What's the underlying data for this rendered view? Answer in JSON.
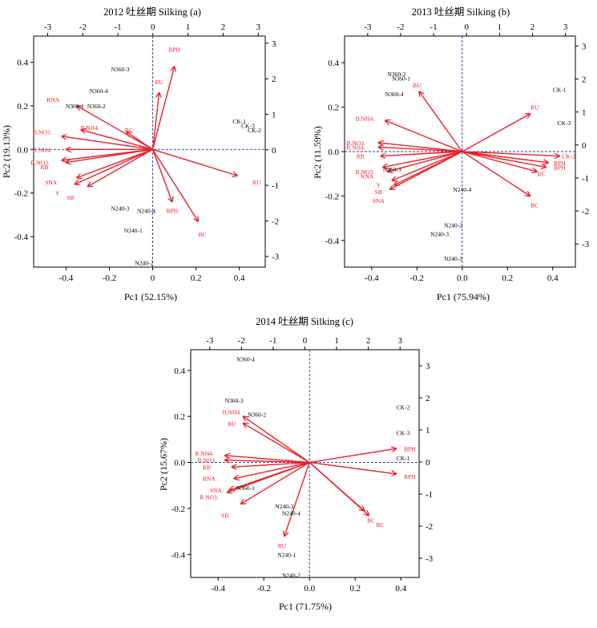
{
  "colors": {
    "vector": "#e8202a",
    "sample": "#000000",
    "axis": "#000000",
    "zero_line": "#1f3a93"
  },
  "chart_data": [
    {
      "type": "scatter",
      "subtype": "pca-biplot",
      "title": "2012 吐丝期 Silking (a)",
      "xlabel": "Pc1 (52.15%)",
      "ylabel": "Pc2 (19.13%)",
      "xlim": [
        -0.55,
        0.52
      ],
      "ylim": [
        -0.54,
        0.52
      ],
      "x_ticks": [
        -0.4,
        -0.2,
        0,
        0.2,
        0.4
      ],
      "y_ticks": [
        -0.4,
        -0.2,
        0.0,
        0.2,
        0.4
      ],
      "x_tick_labels": [
        "-0.4",
        "-0.2",
        "0",
        "0.2",
        "0.4"
      ],
      "y_tick_labels": [
        "-0.4",
        "-0.2",
        "0.0",
        "0.2",
        "0.4"
      ],
      "top_axis": {
        "lim": [
          -3.4,
          3.2
        ],
        "ticks": [
          -3,
          -2,
          -1,
          0,
          1,
          2,
          3
        ],
        "labels": [
          "-3",
          "-2",
          "-1",
          "0",
          "1",
          "2",
          "3"
        ]
      },
      "right_axis": {
        "lim": [
          -3.3,
          3.2
        ],
        "ticks": [
          -3,
          -2,
          -1,
          0,
          1,
          2,
          3
        ],
        "labels": [
          "-3",
          "-2",
          "-1",
          "0",
          "1",
          "2",
          "3"
        ]
      },
      "vectors": [
        {
          "label": "BPH",
          "x": 0.1,
          "y": 0.38,
          "lx": 0.1,
          "ly": 0.46
        },
        {
          "label": "BU",
          "x": 0.03,
          "y": 0.26,
          "lx": 0.03,
          "ly": 0.31
        },
        {
          "label": "RNA",
          "x": -0.35,
          "y": 0.2,
          "lx": -0.46,
          "ly": 0.23
        },
        {
          "label": "B.NH4.",
          "x": -0.33,
          "y": 0.09,
          "lx": -0.29,
          "ly": 0.1
        },
        {
          "label": "RC",
          "x": -0.12,
          "y": 0.08,
          "lx": -0.11,
          "ly": 0.09
        },
        {
          "label": "B.NO3.",
          "x": -0.42,
          "y": 0.06,
          "lx": -0.51,
          "ly": 0.08
        },
        {
          "label": "R.NH4.",
          "x": -0.4,
          "y": 0.0,
          "lx": -0.51,
          "ly": 0.0
        },
        {
          "label": "R.NO3.",
          "x": -0.42,
          "y": -0.05,
          "lx": -0.52,
          "ly": -0.06
        },
        {
          "label": "RB",
          "x": -0.4,
          "y": -0.06,
          "lx": -0.5,
          "ly": -0.08
        },
        {
          "label": "SNA",
          "x": -0.35,
          "y": -0.13,
          "lx": -0.47,
          "ly": -0.15
        },
        {
          "label": "Y",
          "x": -0.36,
          "y": -0.16,
          "lx": -0.44,
          "ly": -0.2
        },
        {
          "label": "SB",
          "x": -0.3,
          "y": -0.17,
          "lx": -0.38,
          "ly": -0.22
        },
        {
          "label": "RU",
          "x": 0.39,
          "y": -0.12,
          "lx": 0.48,
          "ly": -0.15
        },
        {
          "label": "RPH",
          "x": 0.09,
          "y": -0.24,
          "lx": 0.09,
          "ly": -0.28
        },
        {
          "label": "BC",
          "x": 0.21,
          "y": -0.33,
          "lx": 0.23,
          "ly": -0.39
        }
      ],
      "samples": [
        {
          "label": "N360-3",
          "x": -0.15,
          "y": 0.37
        },
        {
          "label": "N360-4",
          "x": -0.25,
          "y": 0.27
        },
        {
          "label": "N360-1",
          "x": -0.36,
          "y": 0.2
        },
        {
          "label": "N360-2",
          "x": -0.26,
          "y": 0.2
        },
        {
          "label": "CK-1",
          "x": 0.4,
          "y": 0.13
        },
        {
          "label": "CK-3",
          "x": 0.44,
          "y": 0.11
        },
        {
          "label": "CK-2",
          "x": 0.47,
          "y": 0.09
        },
        {
          "label": "N240-3",
          "x": -0.15,
          "y": -0.27
        },
        {
          "label": "N240-4",
          "x": -0.03,
          "y": -0.28
        },
        {
          "label": "N240-1",
          "x": -0.09,
          "y": -0.37
        },
        {
          "label": "N240-2",
          "x": -0.04,
          "y": -0.52
        }
      ]
    },
    {
      "type": "scatter",
      "subtype": "pca-biplot",
      "title": "2013 吐丝期 Silking (b)",
      "xlabel": "Pc1 (75.94%)",
      "ylabel": "Pc2 (11.59%)",
      "xlim": [
        -0.52,
        0.5
      ],
      "ylim": [
        -0.52,
        0.52
      ],
      "x_ticks": [
        -0.4,
        -0.2,
        0.0,
        0.2,
        0.4
      ],
      "y_ticks": [
        -0.4,
        -0.2,
        0.0,
        0.2,
        0.4
      ],
      "x_tick_labels": [
        "-0.4",
        "-0.2",
        "0.0",
        "0.2",
        "0.4"
      ],
      "y_tick_labels": [
        "-0.4",
        "-0.2",
        "0.0",
        "0.2",
        "0.4"
      ],
      "top_axis": {
        "lim": [
          -3.7,
          3.3
        ],
        "ticks": [
          -3,
          -2,
          -1,
          0,
          1,
          2,
          3
        ],
        "labels": [
          "-3",
          "-2",
          "-1",
          "0",
          "1",
          "2",
          "3"
        ]
      },
      "right_axis": {
        "lim": [
          -3.7,
          3.3
        ],
        "ticks": [
          -3,
          -2,
          -1,
          0,
          1,
          2,
          3
        ],
        "labels": [
          "-3",
          "-2",
          "-1",
          "0",
          "1",
          "2",
          "3"
        ]
      },
      "vectors": [
        {
          "label": "BU",
          "x": -0.19,
          "y": 0.27,
          "lx": -0.2,
          "ly": 0.3
        },
        {
          "label": "B.NH4.",
          "x": -0.34,
          "y": 0.14,
          "lx": -0.43,
          "ly": 0.15
        },
        {
          "label": "B.NO3.",
          "x": -0.37,
          "y": 0.04,
          "lx": -0.47,
          "ly": 0.04
        },
        {
          "label": "R.NH4.",
          "x": -0.37,
          "y": 0.02,
          "lx": -0.47,
          "ly": 0.02
        },
        {
          "label": "RB",
          "x": -0.36,
          "y": -0.02,
          "lx": -0.45,
          "ly": -0.02
        },
        {
          "label": "R.NO3.",
          "x": -0.35,
          "y": -0.07,
          "lx": -0.43,
          "ly": -0.09
        },
        {
          "label": "RNA",
          "x": -0.33,
          "y": -0.09,
          "lx": -0.42,
          "ly": -0.11
        },
        {
          "label": "Y",
          "x": -0.31,
          "y": -0.13,
          "lx": -0.37,
          "ly": -0.15
        },
        {
          "label": "SB",
          "x": -0.3,
          "y": -0.15,
          "lx": -0.37,
          "ly": -0.18
        },
        {
          "label": "SNA",
          "x": -0.32,
          "y": -0.17,
          "lx": -0.37,
          "ly": -0.22
        },
        {
          "label": "RU",
          "x": 0.3,
          "y": 0.17,
          "lx": 0.32,
          "ly": 0.2
        },
        {
          "label": "CK-2",
          "x": 0.43,
          "y": -0.02,
          "lx": 0.47,
          "ly": -0.02
        },
        {
          "label": "RPH",
          "x": 0.38,
          "y": -0.05,
          "lx": 0.43,
          "ly": -0.05
        },
        {
          "label": "BPH",
          "x": 0.37,
          "y": -0.07,
          "lx": 0.43,
          "ly": -0.07
        },
        {
          "label": "RC",
          "x": 0.33,
          "y": -0.09,
          "lx": 0.35,
          "ly": -0.1
        },
        {
          "label": "BC",
          "x": 0.3,
          "y": -0.2,
          "lx": 0.32,
          "ly": -0.24
        }
      ],
      "samples": [
        {
          "label": "N360-2",
          "x": -0.29,
          "y": 0.35
        },
        {
          "label": "N360-1",
          "x": -0.27,
          "y": 0.33
        },
        {
          "label": "N360-4",
          "x": -0.3,
          "y": 0.26
        },
        {
          "label": "N360-3",
          "x": -0.31,
          "y": -0.08
        },
        {
          "label": "CK-1",
          "x": 0.43,
          "y": 0.28
        },
        {
          "label": "CK-3",
          "x": 0.45,
          "y": 0.13
        },
        {
          "label": "N240-4",
          "x": 0.0,
          "y": -0.17
        },
        {
          "label": "N240-2",
          "x": -0.04,
          "y": -0.33
        },
        {
          "label": "N240-3",
          "x": -0.1,
          "y": -0.37
        },
        {
          "label": "N240-1",
          "x": -0.04,
          "y": -0.48
        }
      ]
    },
    {
      "type": "scatter",
      "subtype": "pca-biplot",
      "title": "2014 吐丝期 Silking (c)",
      "xlabel": "Pc1 (71.75%)",
      "ylabel": "Pc2 (15.67%)",
      "xlim": [
        -0.52,
        0.48
      ],
      "ylim": [
        -0.5,
        0.49
      ],
      "x_ticks": [
        -0.4,
        -0.2,
        0.0,
        0.2,
        0.4
      ],
      "y_ticks": [
        -0.4,
        -0.2,
        0.0,
        0.2,
        0.4
      ],
      "x_tick_labels": [
        "-0.4",
        "-0.2",
        "0.0",
        "0.2",
        "0.4"
      ],
      "y_tick_labels": [
        "-0.4",
        "-0.2",
        "0.0",
        "0.2",
        "0.4"
      ],
      "top_axis": {
        "lim": [
          -3.6,
          3.6
        ],
        "ticks": [
          -3,
          -2,
          -1,
          0,
          1,
          2,
          3
        ],
        "labels": [
          "-3",
          "-2",
          "-1",
          "0",
          "1",
          "2",
          "3"
        ]
      },
      "right_axis": {
        "lim": [
          -3.6,
          3.5
        ],
        "ticks": [
          -3,
          -2,
          -1,
          0,
          1,
          2,
          3
        ],
        "labels": [
          "-3",
          "-2",
          "-1",
          "0",
          "1",
          "2",
          "3"
        ]
      },
      "vectors": [
        {
          "label": "B.NH4.",
          "x": -0.29,
          "y": 0.2,
          "lx": -0.34,
          "ly": 0.22
        },
        {
          "label": "BU",
          "x": -0.29,
          "y": 0.17,
          "lx": -0.34,
          "ly": 0.17
        },
        {
          "label": "R.NH4.",
          "x": -0.37,
          "y": 0.03,
          "lx": -0.46,
          "ly": 0.04
        },
        {
          "label": "B.NO3.",
          "x": -0.37,
          "y": 0.01,
          "lx": -0.45,
          "ly": 0.01
        },
        {
          "label": "RB",
          "x": -0.34,
          "y": -0.02,
          "lx": -0.45,
          "ly": -0.02
        },
        {
          "label": "RNA",
          "x": -0.33,
          "y": -0.07,
          "lx": -0.44,
          "ly": -0.07
        },
        {
          "label": "SNA",
          "x": -0.35,
          "y": -0.12,
          "lx": -0.41,
          "ly": -0.12
        },
        {
          "label": "R.NO3.",
          "x": -0.36,
          "y": -0.13,
          "lx": -0.44,
          "ly": -0.15
        },
        {
          "label": "SB",
          "x": -0.3,
          "y": -0.18,
          "lx": -0.37,
          "ly": -0.23
        },
        {
          "label": "BPH",
          "x": 0.38,
          "y": 0.06,
          "lx": 0.44,
          "ly": 0.06
        },
        {
          "label": "RPH",
          "x": 0.38,
          "y": -0.05,
          "lx": 0.44,
          "ly": -0.06
        },
        {
          "label": "BC",
          "x": 0.26,
          "y": -0.23,
          "lx": 0.27,
          "ly": -0.25
        },
        {
          "label": "RC",
          "x": 0.24,
          "y": -0.21,
          "lx": 0.31,
          "ly": -0.27
        },
        {
          "label": "RU",
          "x": -0.11,
          "y": -0.32,
          "lx": -0.12,
          "ly": -0.36
        }
      ],
      "samples": [
        {
          "label": "N360-4",
          "x": -0.28,
          "y": 0.45
        },
        {
          "label": "N360-3",
          "x": -0.33,
          "y": 0.27
        },
        {
          "label": "N360-2",
          "x": -0.23,
          "y": 0.21
        },
        {
          "label": "N360-1",
          "x": -0.28,
          "y": -0.11
        },
        {
          "label": "CK-2",
          "x": 0.41,
          "y": 0.24
        },
        {
          "label": "CK-3",
          "x": 0.41,
          "y": 0.13
        },
        {
          "label": "CK-1",
          "x": 0.41,
          "y": 0.02
        },
        {
          "label": "N240-3",
          "x": -0.11,
          "y": -0.19
        },
        {
          "label": "N240-4",
          "x": -0.08,
          "y": -0.22
        },
        {
          "label": "N240-1",
          "x": -0.1,
          "y": -0.4
        },
        {
          "label": "N240-2",
          "x": -0.08,
          "y": -0.49
        }
      ]
    }
  ]
}
